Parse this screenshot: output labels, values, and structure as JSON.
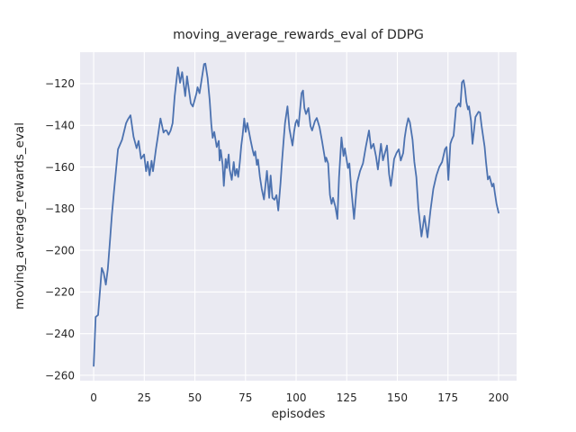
{
  "figure": {
    "background": "#ffffff"
  },
  "chart_data": {
    "type": "line",
    "title": "moving_average_rewards_eval of DDPG",
    "xlabel": "episodes",
    "ylabel": "moving_average_rewards_eval",
    "x_ticks": [
      0,
      25,
      50,
      75,
      100,
      125,
      150,
      175,
      200
    ],
    "y_ticks": [
      -120,
      -140,
      -160,
      -180,
      -200,
      -220,
      -240,
      -260
    ],
    "xlim": [
      -6.7,
      208.9
    ],
    "ylim": [
      -262.6,
      -104.9
    ],
    "grid": true,
    "legend": "none",
    "style": {
      "axes_background": "#eaeaf2",
      "grid_color": "#ffffff",
      "line_color": "#4c72b0",
      "text_color": "#262626",
      "line_width": 1.8
    },
    "series": [
      {
        "name": "moving_average_rewards_eval",
        "x": [
          0,
          1,
          2.2,
          4,
          5,
          6,
          7,
          8,
          9,
          10,
          11,
          12,
          14,
          16,
          17,
          18.2,
          19.7,
          21.2,
          22.2,
          23.4,
          24.9,
          25.9,
          26.7,
          27.6,
          28.6,
          29.3,
          30.8,
          31.6,
          33,
          34.5,
          35.2,
          36,
          37,
          38,
          39,
          40,
          41.6,
          42.7,
          43.7,
          45.2,
          46.1,
          48,
          49,
          50.8,
          51.3,
          52.3,
          54.5,
          55.2,
          56.3,
          57.3,
          58.1,
          58.8,
          59.6,
          60.8,
          61.8,
          62.2,
          62.8,
          63.7,
          64.3,
          65.2,
          65.8,
          66.7,
          67.2,
          68.2,
          69.2,
          69.9,
          70.7,
          71.4,
          72.2,
          72.9,
          73.6,
          74.4,
          75.1,
          75.9,
          77.6,
          78.5,
          79.2,
          79.8,
          80.6,
          81.2,
          82.1,
          83,
          84.1,
          85.6,
          86.7,
          87.4,
          88.3,
          89.3,
          90.3,
          91.2,
          92.3,
          93,
          93.8,
          94.5,
          95.7,
          96.7,
          97.5,
          98.2,
          99,
          99.7,
          100.4,
          101.2,
          102.7,
          103.4,
          104.1,
          104.9,
          106.1,
          107.1,
          107.9,
          109.3,
          110.2,
          111.6,
          112.8,
          113.8,
          114.5,
          114.9,
          115.8,
          116.7,
          117.5,
          118.2,
          119.4,
          120.4,
          121.2,
          122.4,
          123.4,
          124.1,
          125.6,
          126.3,
          127.1,
          128.6,
          130.1,
          131.6,
          133,
          134.5,
          136,
          137,
          138.2,
          139.4,
          140.4,
          141.9,
          142.9,
          144.9,
          145.9,
          146.8,
          147.9,
          148.4,
          149.6,
          150.7,
          151.7,
          152.9,
          153.6,
          154.4,
          155.4,
          156.2,
          157.5,
          158.4,
          159.4,
          160.4,
          161.9,
          163.4,
          164.9,
          166.4,
          167.8,
          169.3,
          170.7,
          172.1,
          173.5,
          174.3,
          175.2,
          176.2,
          176.9,
          177.8,
          179,
          180.4,
          181.1,
          181.9,
          182.7,
          183.4,
          184.1,
          184.9,
          185.4,
          186.4,
          187.1,
          188.6,
          190.1,
          190.8,
          191.6,
          193.1,
          193.8,
          194.7,
          195.5,
          196.8,
          197.5,
          198.2,
          199,
          200
        ],
        "y": [
          -255.5,
          -232,
          -231,
          -208.5,
          -211,
          -216.5,
          -209,
          -196,
          -183,
          -172,
          -162,
          -151.5,
          -147,
          -139,
          -137,
          -135.2,
          -145.5,
          -151,
          -147.5,
          -156,
          -154,
          -162,
          -157.5,
          -164,
          -157,
          -162,
          -151,
          -146,
          -136.7,
          -143.5,
          -142.5,
          -142.5,
          -144.5,
          -142.5,
          -139,
          -126,
          -112.2,
          -119.6,
          -114.5,
          -126,
          -116.5,
          -129.5,
          -131,
          -124.6,
          -121.7,
          -124.6,
          -110.6,
          -110.4,
          -117.4,
          -128,
          -139.6,
          -146,
          -143.2,
          -150.4,
          -147.5,
          -156.9,
          -151.8,
          -159,
          -169.1,
          -156.2,
          -160.5,
          -154,
          -161.2,
          -166.2,
          -157.6,
          -164.1,
          -161,
          -164.8,
          -157.6,
          -149.7,
          -144.6,
          -136.7,
          -143.2,
          -138.9,
          -147.5,
          -151.8,
          -154.5,
          -152.5,
          -159,
          -156.5,
          -164.8,
          -170.5,
          -175.6,
          -161.9,
          -174.8,
          -164.1,
          -174.8,
          -175.7,
          -173.5,
          -180.9,
          -167.7,
          -157.6,
          -147.5,
          -138.9,
          -130.9,
          -141.7,
          -146,
          -149.7,
          -143,
          -138.9,
          -137.4,
          -140.5,
          -124.5,
          -123.3,
          -131.7,
          -134.6,
          -131.7,
          -140.3,
          -142.5,
          -138,
          -136.5,
          -141,
          -147.5,
          -153.5,
          -157.5,
          -155.5,
          -158.3,
          -173.4,
          -177.7,
          -174.8,
          -179.2,
          -184.9,
          -165,
          -145.8,
          -154.7,
          -151.1,
          -160.5,
          -158.3,
          -169.1,
          -184.9,
          -167.7,
          -161.9,
          -158.3,
          -150,
          -142.5,
          -151.1,
          -148.9,
          -154.7,
          -161.2,
          -148.9,
          -156.8,
          -149.7,
          -163.3,
          -169.1,
          -160.5,
          -156.2,
          -153.3,
          -151.5,
          -156.9,
          -153.3,
          -146.1,
          -141,
          -136.6,
          -138.5,
          -147,
          -157.6,
          -164.8,
          -179.9,
          -193.4,
          -183.5,
          -193.8,
          -180.6,
          -170.5,
          -164.1,
          -160,
          -157.6,
          -151.5,
          -150.4,
          -166.2,
          -148.9,
          -146.8,
          -145,
          -131.7,
          -129.5,
          -131,
          -119.4,
          -118.4,
          -122.3,
          -128.8,
          -132.4,
          -130.9,
          -138.1,
          -148.9,
          -136,
          -133.5,
          -133.8,
          -140.3,
          -150.4,
          -157.6,
          -166,
          -164.5,
          -169.4,
          -168,
          -172.7,
          -177.7,
          -182
        ]
      }
    ]
  }
}
